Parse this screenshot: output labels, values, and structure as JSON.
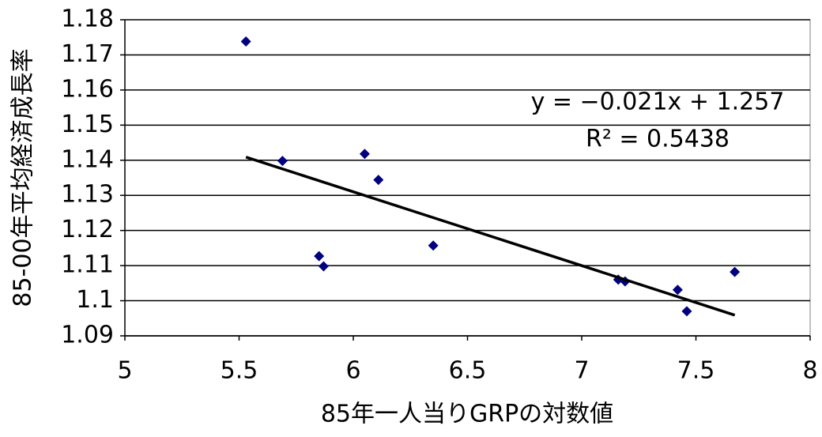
{
  "chart_data": {
    "type": "scatter",
    "x_label": "85年一人当りGRPの対数値",
    "y_label": "85-00年平均経済成長率",
    "x": [
      5.53,
      5.69,
      5.85,
      5.87,
      6.05,
      6.11,
      6.35,
      7.16,
      7.19,
      7.42,
      7.46,
      7.67
    ],
    "values": [
      1.1738,
      1.1398,
      1.1127,
      1.1098,
      1.1418,
      1.1344,
      1.1157,
      1.106,
      1.1055,
      1.1031,
      1.097,
      1.1082
    ],
    "color": "#000080",
    "trendline": {
      "x": [
        5.53,
        7.67
      ],
      "y": [
        1.1409,
        1.0959
      ],
      "color": "#000000"
    },
    "annotations": [
      "y = −0.021x + 1.257",
      "R² = 0.5438"
    ],
    "xlim": [
      5,
      8
    ],
    "xticks": [
      5,
      5.5,
      6,
      6.5,
      7,
      7.5,
      8
    ],
    "ylim": [
      1.09,
      1.18
    ],
    "yticks": [
      1.09,
      1.1,
      1.11,
      1.12,
      1.13,
      1.14,
      1.15,
      1.16,
      1.17,
      1.18
    ],
    "grid": true
  }
}
